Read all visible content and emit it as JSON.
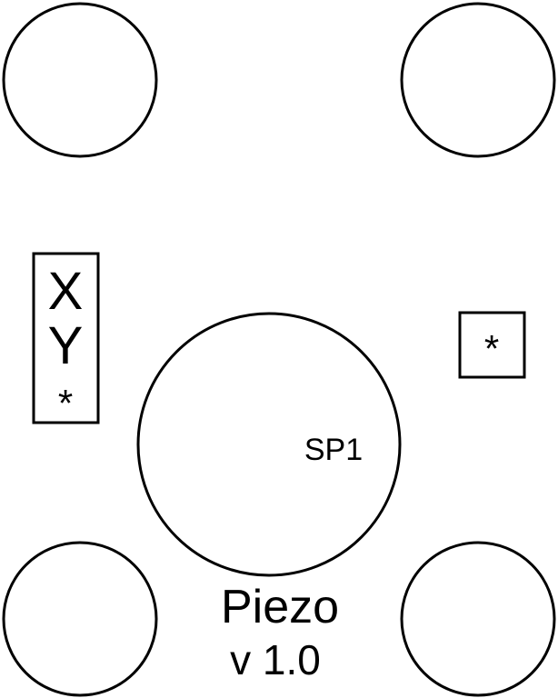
{
  "silkscreen": {
    "header_labels": [
      "X",
      "Y",
      "*"
    ],
    "pin1_marker": "*",
    "speaker_designator": "SP1",
    "board_name": "Piezo",
    "version": "v 1.0"
  },
  "colors": {
    "background": "#ffffff",
    "ink": "#000000"
  }
}
